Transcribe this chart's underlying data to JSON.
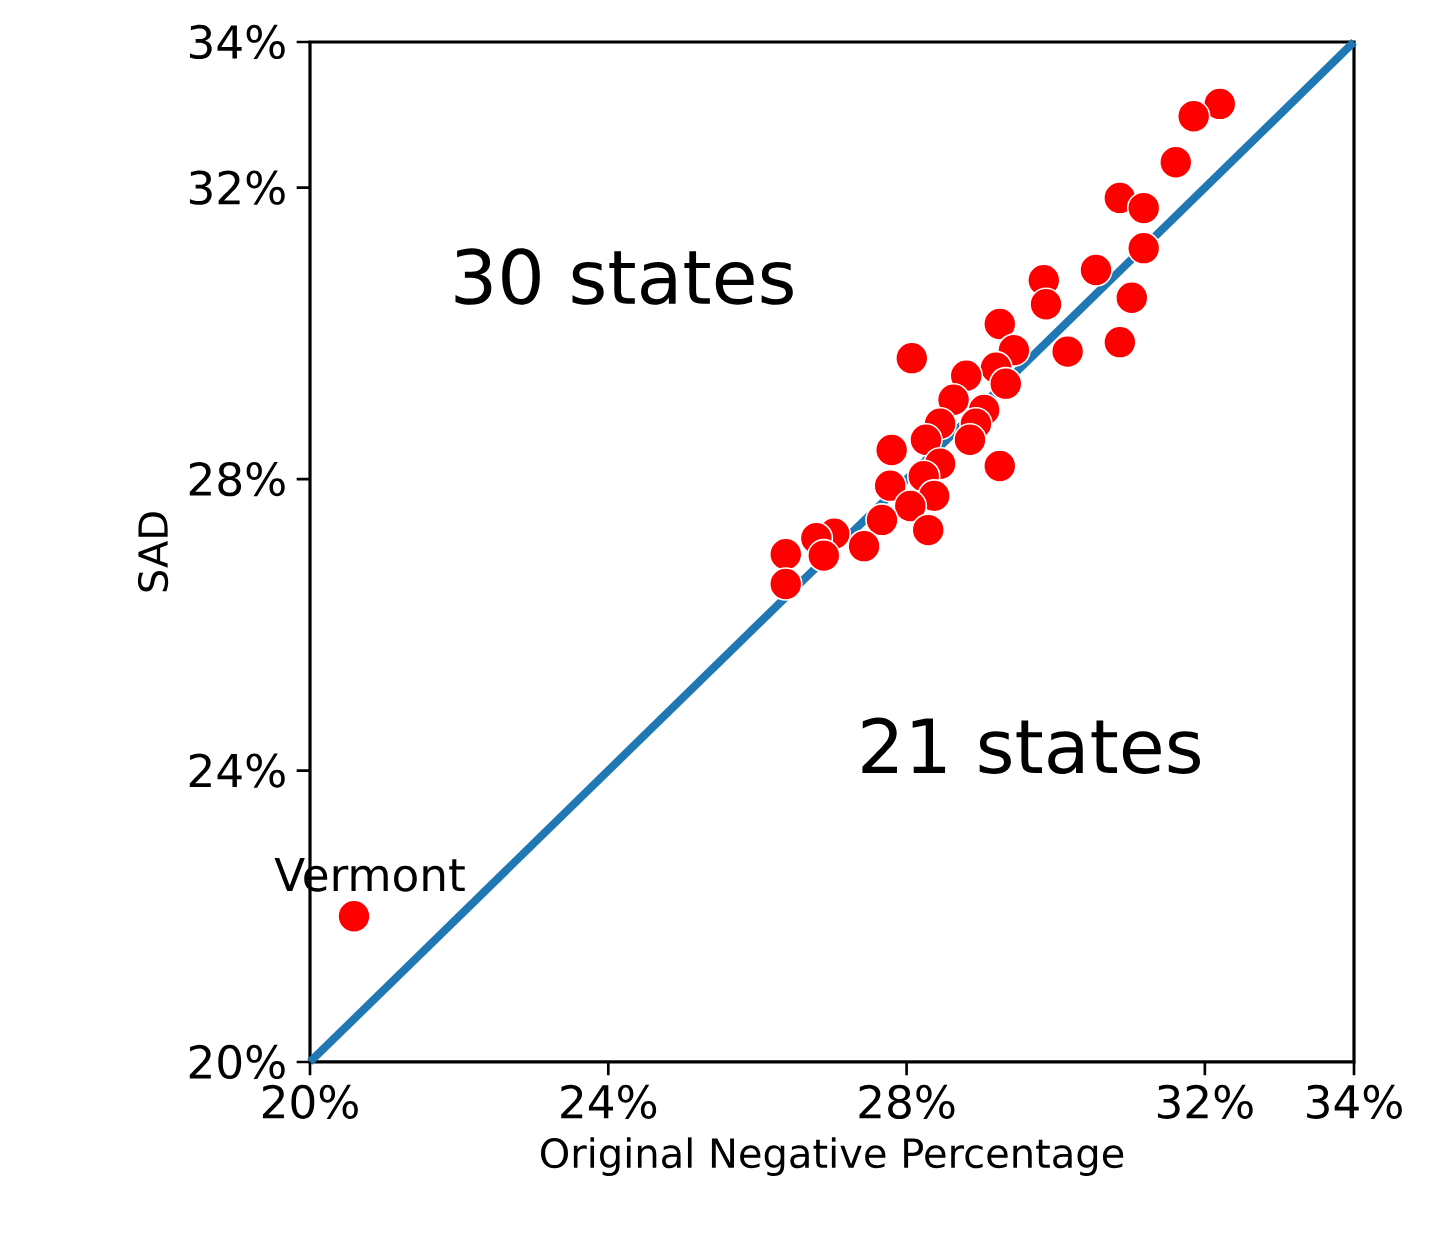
{
  "chart_data": {
    "type": "scatter",
    "xlabel": "Original Negative Percentage",
    "ylabel": "SAD",
    "xlim": [
      20,
      34
    ],
    "ylim": [
      20,
      34
    ],
    "xticks": [
      {
        "value": 20,
        "label": "20%"
      },
      {
        "value": 24,
        "label": "24%"
      },
      {
        "value": 28,
        "label": "28%"
      },
      {
        "value": 32,
        "label": "32%"
      },
      {
        "value": 34,
        "label": "34%"
      }
    ],
    "yticks": [
      {
        "value": 20,
        "label": "20%"
      },
      {
        "value": 24,
        "label": "24%"
      },
      {
        "value": 28,
        "label": "28%"
      },
      {
        "value": 32,
        "label": "32%"
      },
      {
        "value": 34,
        "label": "34%"
      }
    ],
    "grid": false,
    "annotations": [
      "30 states",
      "21 states",
      {
        "text": "Vermont",
        "x": 20.59,
        "y": 22.0
      }
    ],
    "series": [
      {
        "color": "#ff0000",
        "marker": "circle",
        "x": [
          20.59,
          32.2,
          31.85,
          31.61,
          30.86,
          31.18,
          31.18,
          30.54,
          31.02,
          30.86,
          30.16,
          29.84,
          29.87,
          28.07,
          29.17,
          29.25,
          29.44,
          29.2,
          28.8,
          29.33,
          28.63,
          29.04,
          28.93,
          28.85,
          28.45,
          28.26,
          27.8,
          29.25,
          28.45,
          28.23,
          27.78,
          28.37,
          28.05,
          27.67,
          28.29,
          27.43,
          27.03,
          26.79,
          26.89,
          26.38,
          26.38
        ],
        "values": [
          22.0,
          33.15,
          32.98,
          32.35,
          31.86,
          31.72,
          31.17,
          30.87,
          30.49,
          29.88,
          29.75,
          30.73,
          30.4,
          29.66,
          null,
          30.13,
          29.77,
          29.53,
          29.42,
          29.31,
          29.09,
          28.95,
          28.76,
          28.54,
          28.76,
          28.54,
          28.4,
          28.18,
          28.21,
          28.04,
          27.91,
          27.77,
          27.63,
          27.44,
          27.3,
          27.08,
          27.25,
          27.19,
          26.95,
          26.97,
          26.56
        ]
      },
      {
        "type": "line",
        "color": "#1f77b4",
        "marker": "none",
        "line_style": "solid",
        "x": [
          20,
          34
        ],
        "values": [
          20,
          34
        ]
      }
    ]
  }
}
